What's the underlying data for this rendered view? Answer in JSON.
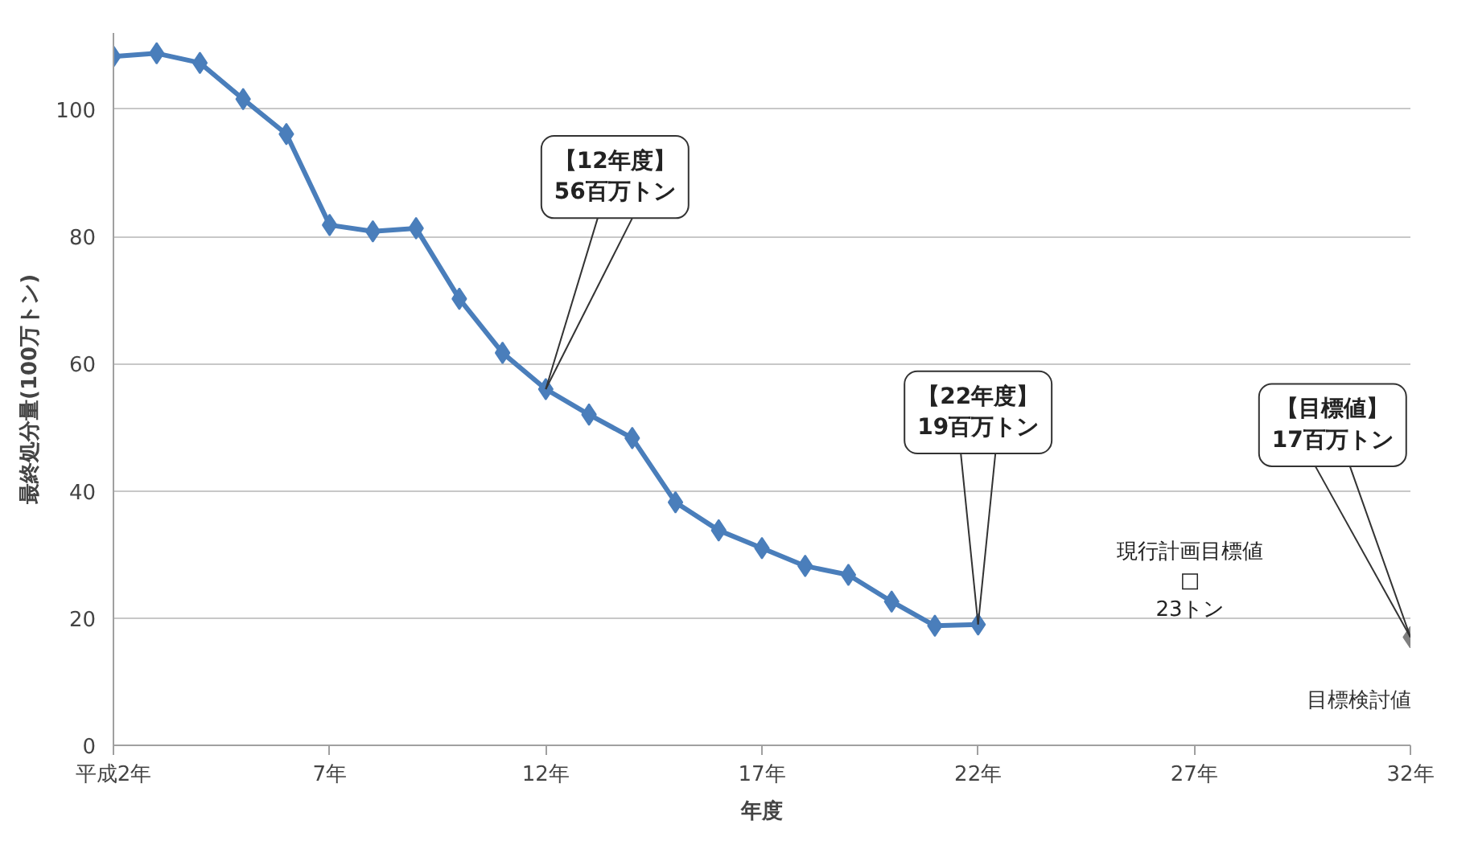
{
  "chart_data": {
    "type": "line",
    "xlabel": "年度",
    "ylabel": "最終処分量(100万トン)",
    "series": [
      {
        "color": "#4a7ebb",
        "x": [
          2,
          3,
          4,
          5,
          6,
          7,
          8,
          9,
          10,
          11,
          12,
          13,
          14,
          15,
          16,
          17,
          18,
          19,
          20,
          21,
          22
        ],
        "values": [
          108.3,
          108.8,
          107.3,
          101.6,
          96.1,
          81.8,
          80.8,
          81.3,
          70.2,
          61.7,
          56,
          52,
          48.3,
          38.2,
          33.8,
          31,
          28.2,
          26.8,
          22.6,
          18.8,
          19
        ]
      },
      {
        "name": "目標検討値",
        "color": "#808080",
        "x": [
          32
        ],
        "values": [
          17
        ]
      }
    ],
    "annotations": [
      {
        "text": "【12年度】\n56百万トン",
        "x": 12,
        "y": 56
      },
      {
        "text": "【22年度】\n19百万トン",
        "x": 22,
        "y": 19
      },
      {
        "text": "【目標値】\n17百万トン",
        "x": 32,
        "y": 17
      },
      "現行計画目標値\n□\n23トン"
    ],
    "xlim": [
      2,
      32
    ],
    "xticks": [
      {
        "value": 2,
        "label": "平成2年"
      },
      {
        "value": 7,
        "label": "7年"
      },
      {
        "value": 12,
        "label": "12年"
      },
      {
        "value": 17,
        "label": "17年"
      },
      {
        "value": 22,
        "label": "22年"
      },
      {
        "value": 27,
        "label": "27年"
      },
      {
        "value": 32,
        "label": "32年"
      }
    ],
    "ylim": [
      0,
      112
    ],
    "yticks": [
      0,
      20,
      40,
      60,
      80,
      100
    ],
    "grid": "y",
    "marker": "diamond",
    "line_style": "solid",
    "legend": false
  }
}
